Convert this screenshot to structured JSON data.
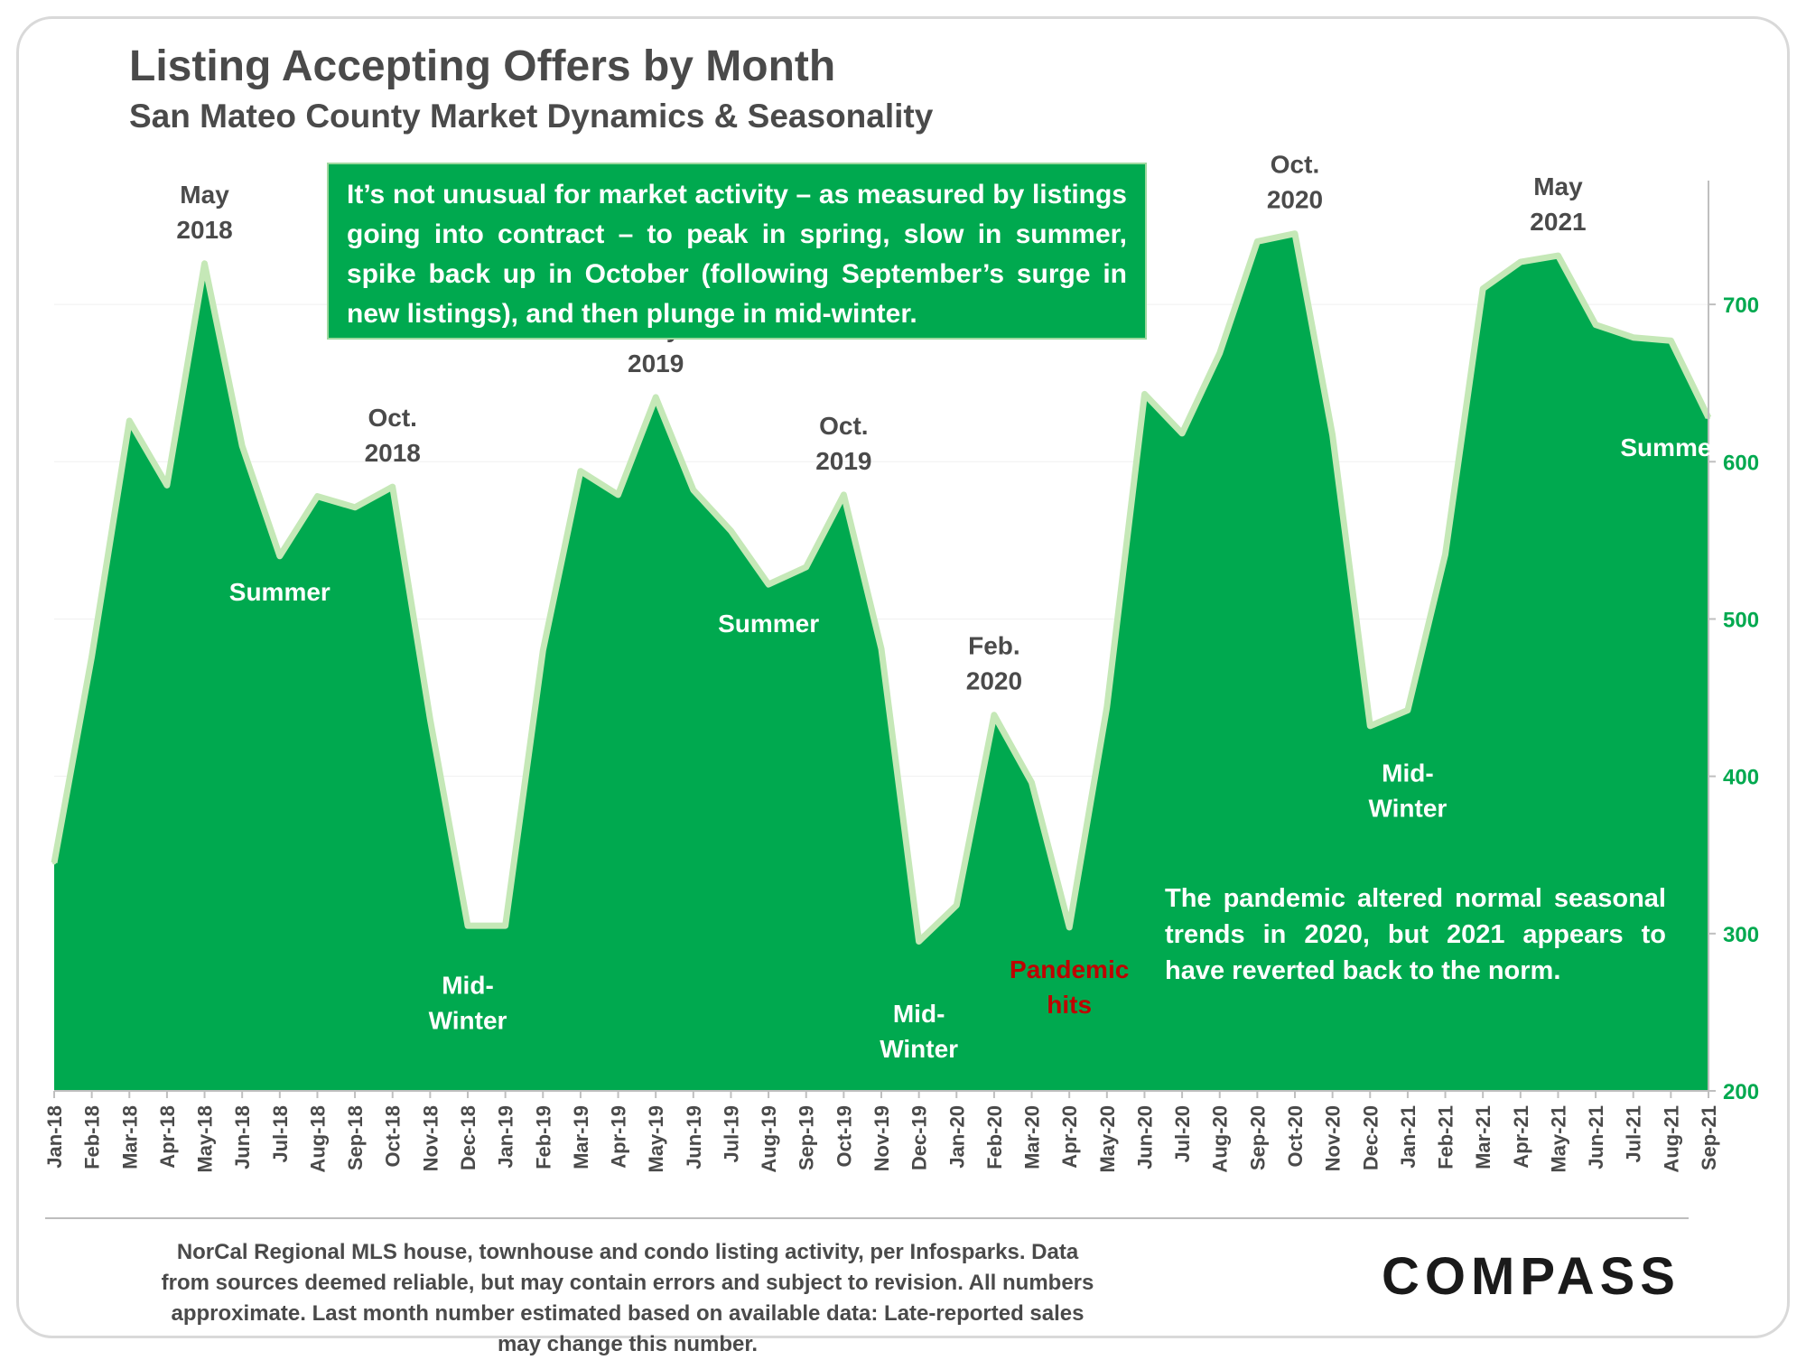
{
  "page": {
    "title": "Listing Accepting Offers by Month",
    "subtitle": "San Mateo County Market Dynamics & Seasonality",
    "callout": "It’s not unusual for market activity – as measured by listings going into contract – to peak in spring, slow in summer, spike back up in October (following September’s surge in new listings), and then plunge in mid-winter.",
    "note": "The pandemic altered normal seasonal trends in 2020, but 2021 appears to have reverted back to the norm.",
    "footer": "NorCal Regional MLS house, townhouse and condo listing activity, per Infosparks. Data from sources deemed reliable, but may contain errors and subject to revision. All numbers approximate. Last month number estimated based on available data: Late-reported sales may change this number.",
    "logo": "COMPASS"
  },
  "colors": {
    "area_fill": "#00a94f",
    "area_outline": "#c5e8b7",
    "text_dark": "#4a4a4a",
    "tick_green": "#00a94f",
    "pandemic_red": "#c00000"
  },
  "chart_data": {
    "type": "area",
    "x": [
      "Jan-18",
      "Feb-18",
      "Mar-18",
      "Apr-18",
      "May-18",
      "Jun-18",
      "Jul-18",
      "Aug-18",
      "Sep-18",
      "Oct-18",
      "Nov-18",
      "Dec-18",
      "Jan-19",
      "Feb-19",
      "Mar-19",
      "Apr-19",
      "May-19",
      "Jun-19",
      "Jul-19",
      "Aug-19",
      "Sep-19",
      "Oct-19",
      "Nov-19",
      "Dec-19",
      "Jan-20",
      "Feb-20",
      "Mar-20",
      "Apr-20",
      "May-20",
      "Jun-20",
      "Jul-20",
      "Aug-20",
      "Sep-20",
      "Oct-20",
      "Nov-20",
      "Dec-20",
      "Jan-21",
      "Feb-21",
      "Mar-21",
      "Apr-21",
      "May-21",
      "Jun-21",
      "Jul-21",
      "Aug-21",
      "Sep-21"
    ],
    "y": [
      345,
      476,
      626,
      585,
      726,
      610,
      540,
      578,
      571,
      584,
      436,
      305,
      305,
      480,
      594,
      579,
      641,
      582,
      556,
      522,
      533,
      579,
      481,
      295,
      318,
      439,
      396,
      304,
      444,
      643,
      618,
      669,
      740,
      745,
      617,
      432,
      442,
      541,
      710,
      727,
      731,
      687,
      679,
      677,
      628
    ],
    "ylim": [
      200,
      750
    ],
    "yticks": [
      200,
      300,
      400,
      500,
      600,
      700
    ],
    "y_axis_side": "right",
    "grid": true,
    "legend": "none",
    "annotations": [
      {
        "lines": [
          "May",
          "2018"
        ],
        "x": "May-18",
        "y": 726,
        "style": "dark"
      },
      {
        "lines": [
          "Oct.",
          "2018"
        ],
        "x": "Oct-18",
        "y": 584,
        "style": "dark"
      },
      {
        "lines": [
          "Summer"
        ],
        "x": "Jul-18",
        "y": 530,
        "style": "white"
      },
      {
        "lines": [
          "Mid-",
          "Winter"
        ],
        "x": "Dec-18",
        "y": 280,
        "style": "white"
      },
      {
        "lines": [
          "May",
          "2019"
        ],
        "x": "May-19",
        "y": 641,
        "style": "dark"
      },
      {
        "lines": [
          "Summer"
        ],
        "x": "Aug-19",
        "y": 510,
        "style": "white"
      },
      {
        "lines": [
          "Oct.",
          "2019"
        ],
        "x": "Oct-19",
        "y": 579,
        "style": "dark"
      },
      {
        "lines": [
          "Mid-",
          "Winter"
        ],
        "x": "Dec-19",
        "y": 262,
        "style": "white"
      },
      {
        "lines": [
          "Feb.",
          "2020"
        ],
        "x": "Feb-20",
        "y": 439,
        "style": "dark"
      },
      {
        "lines": [
          "Pandemic",
          "hits"
        ],
        "x": "Apr-20",
        "y": 290,
        "style": "red"
      },
      {
        "lines": [
          "Oct.",
          "2020"
        ],
        "x": "Oct-20",
        "y": 745,
        "style": "dark"
      },
      {
        "lines": [
          "Mid-",
          "Winter"
        ],
        "x": "Jan-21",
        "y": 415,
        "style": "white"
      },
      {
        "lines": [
          "May",
          "2021"
        ],
        "x": "May-21",
        "y": 731,
        "style": "dark"
      },
      {
        "lines": [
          "Summer"
        ],
        "x": "Aug-21",
        "y": 622,
        "style": "white"
      }
    ]
  }
}
